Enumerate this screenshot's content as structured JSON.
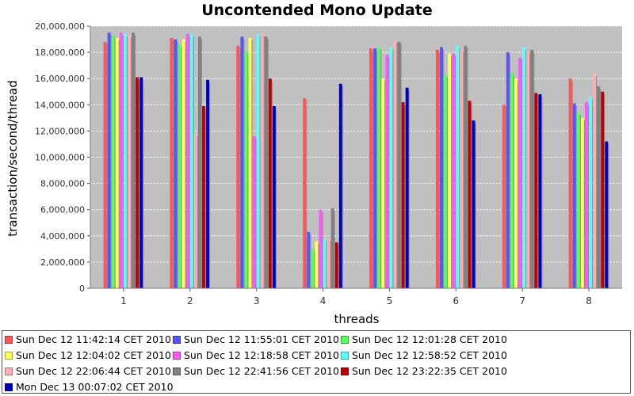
{
  "chart_data": {
    "type": "bar",
    "title": "Uncontended Mono Update",
    "xlabel": "threads",
    "ylabel": "transaction/second/thread",
    "categories": [
      "1",
      "2",
      "3",
      "4",
      "5",
      "6",
      "7",
      "8"
    ],
    "ylim": [
      0,
      20000000
    ],
    "yticks": [
      "0",
      "2,000,000",
      "4,000,000",
      "6,000,000",
      "8,000,000",
      "10,000,000",
      "12,000,000",
      "14,000,000",
      "16,000,000",
      "18,000,000",
      "20,000,000"
    ],
    "grid": true,
    "legend_position": "bottom",
    "plot_background": "#c0c0c0",
    "series": [
      {
        "name": "Sun Dec 12 11:42:14 CET 2010",
        "color": "#ff5555",
        "values": [
          18800000,
          19100000,
          18500000,
          14500000,
          18300000,
          18200000,
          14000000,
          16000000
        ]
      },
      {
        "name": "Sun Dec 12 11:55:01 CET 2010",
        "color": "#5555ff",
        "values": [
          19500000,
          19000000,
          19200000,
          4300000,
          18300000,
          18400000,
          18000000,
          14100000
        ]
      },
      {
        "name": "Sun Dec 12 12:01:28 CET 2010",
        "color": "#55ff55",
        "values": [
          19300000,
          18600000,
          18100000,
          3000000,
          18400000,
          16300000,
          16400000,
          13400000
        ]
      },
      {
        "name": "Sun Dec 12 12:04:02 CET 2010",
        "color": "#ffff55",
        "values": [
          19100000,
          19000000,
          19100000,
          3600000,
          16000000,
          17900000,
          16000000,
          13000000
        ]
      },
      {
        "name": "Sun Dec 12 12:18:58 CET 2010",
        "color": "#ff55ff",
        "values": [
          19500000,
          19400000,
          11600000,
          6000000,
          17800000,
          17900000,
          17600000,
          14200000
        ]
      },
      {
        "name": "Sun Dec 12 12:58:52 CET 2010",
        "color": "#55ffff",
        "values": [
          19400000,
          19400000,
          19400000,
          3800000,
          18400000,
          18500000,
          18400000,
          14600000
        ]
      },
      {
        "name": "Sun Dec 12 22:06:44 CET 2010",
        "color": "#ffafaf",
        "values": [
          19300000,
          11800000,
          19400000,
          3800000,
          18900000,
          18200000,
          18100000,
          16400000
        ]
      },
      {
        "name": "Sun Dec 12 22:41:56 CET 2010",
        "color": "#808080",
        "values": [
          19500000,
          19200000,
          19200000,
          6100000,
          18800000,
          18500000,
          18200000,
          15400000
        ]
      },
      {
        "name": "Sun Dec 12 23:22:35 CET 2010",
        "color": "#c00000",
        "values": [
          16100000,
          13900000,
          16000000,
          3500000,
          14200000,
          14300000,
          14900000,
          15000000
        ]
      },
      {
        "name": "Mon Dec 13 00:07:02 CET 2010",
        "color": "#0000c0",
        "values": [
          16100000,
          15900000,
          13900000,
          15600000,
          15300000,
          12800000,
          14800000,
          11200000
        ]
      }
    ]
  }
}
